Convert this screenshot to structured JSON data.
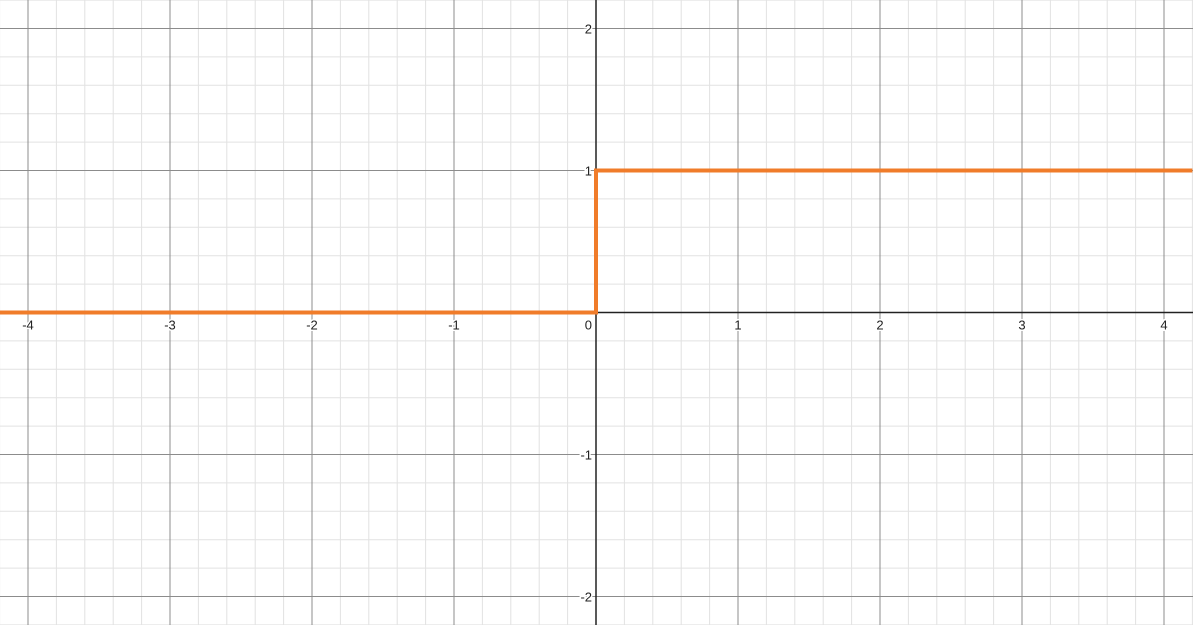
{
  "chart_data": {
    "type": "line",
    "title": "",
    "xlabel": "",
    "ylabel": "",
    "xlim": [
      -4.2,
      4.2
    ],
    "ylim": [
      -2.2,
      2.2
    ],
    "grid": true,
    "minor_step": 0.2,
    "x_ticks": [
      {
        "value": -4,
        "label": "-4"
      },
      {
        "value": -3,
        "label": "-3"
      },
      {
        "value": -2,
        "label": "-2"
      },
      {
        "value": -1,
        "label": "-1"
      },
      {
        "value": 1,
        "label": "1"
      },
      {
        "value": 2,
        "label": "2"
      },
      {
        "value": 3,
        "label": "3"
      },
      {
        "value": 4,
        "label": "4"
      }
    ],
    "y_ticks": [
      {
        "value": 2,
        "label": "2"
      },
      {
        "value": 1,
        "label": "1"
      },
      {
        "value": -1,
        "label": "-1"
      },
      {
        "value": -2,
        "label": "-2"
      }
    ],
    "origin_label": "0",
    "series": [
      {
        "color": "#f07c2a",
        "x": [
          -4.2,
          0,
          0,
          4.2
        ],
        "y": [
          0,
          0,
          1,
          1
        ]
      }
    ]
  }
}
